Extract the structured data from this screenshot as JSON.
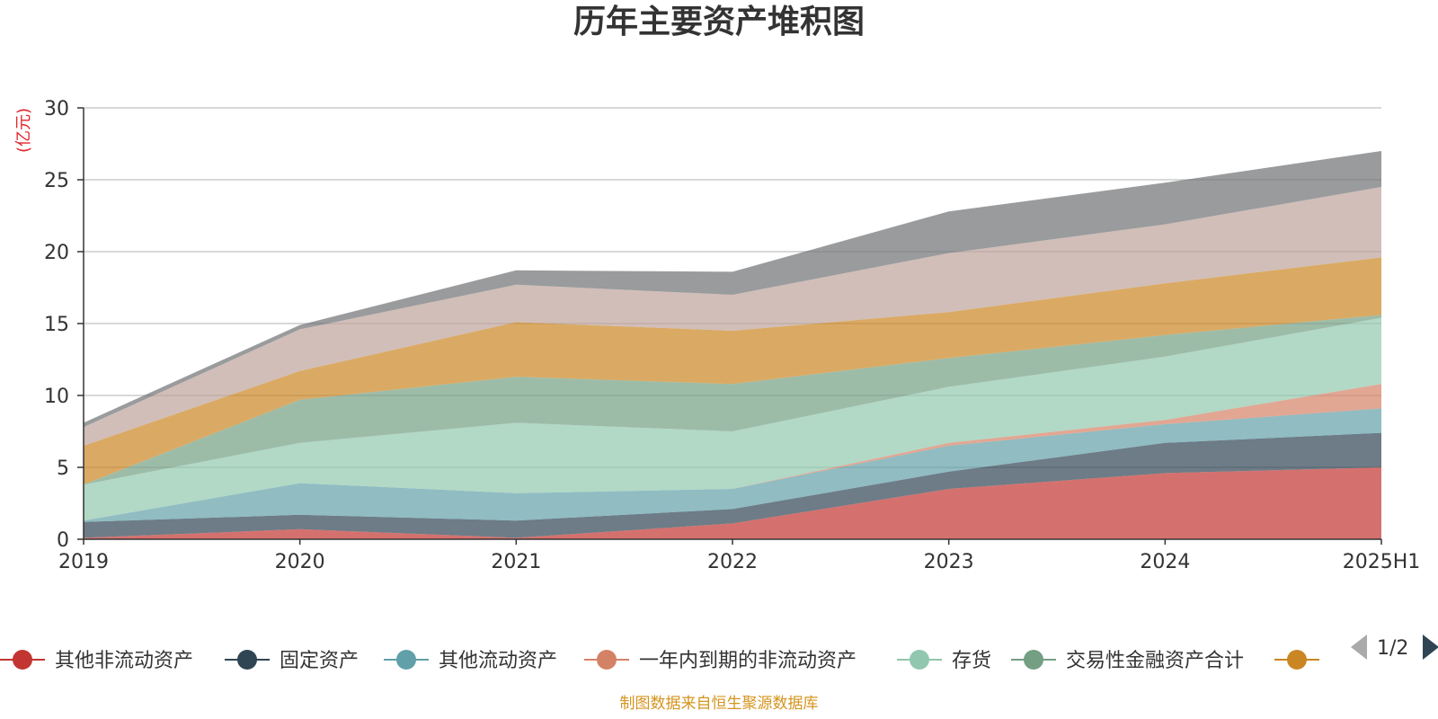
{
  "chart_data": {
    "type": "area",
    "stacked": true,
    "title": "历年主要资产堆积图",
    "ylabel": "(亿元)",
    "ylim": [
      0,
      30
    ],
    "yticks": [
      0,
      5,
      10,
      15,
      20,
      25,
      30
    ],
    "grid": true,
    "categories": [
      "2019",
      "2020",
      "2021",
      "2022",
      "2023",
      "2024",
      "2025H1"
    ],
    "series": [
      {
        "name": "其他非流动资产",
        "color": "#c23531",
        "values": [
          0.1,
          0.7,
          0.1,
          1.1,
          3.5,
          4.6,
          5.0
        ]
      },
      {
        "name": "固定资产",
        "color": "#2f4554",
        "values": [
          1.1,
          1.0,
          1.2,
          1.0,
          1.2,
          2.1,
          2.4
        ]
      },
      {
        "name": "其他流动资产",
        "color": "#61a0a8",
        "values": [
          0.1,
          2.2,
          1.9,
          1.4,
          1.8,
          1.3,
          1.7
        ]
      },
      {
        "name": "一年内到期的非流动资产",
        "color": "#d48265",
        "values": [
          0.0,
          0.0,
          0.0,
          0.0,
          0.2,
          0.3,
          1.7
        ]
      },
      {
        "name": "存货",
        "color": "#91c7ae",
        "values": [
          2.5,
          2.8,
          4.9,
          4.0,
          3.9,
          4.4,
          4.6
        ]
      },
      {
        "name": "交易性金融资产合计",
        "color": "#749f83",
        "values": [
          0.0,
          3.0,
          3.2,
          3.3,
          2.0,
          1.5,
          0.2
        ]
      },
      {
        "name": "",
        "color": "#ca8622",
        "values": [
          2.7,
          2.0,
          3.8,
          3.7,
          3.2,
          3.6,
          4.0
        ]
      },
      {
        "name": "",
        "color": "#bda29a",
        "values": [
          1.3,
          2.9,
          2.6,
          2.5,
          4.1,
          4.1,
          4.9
        ]
      },
      {
        "name": "",
        "color": "#6e7074",
        "values": [
          0.3,
          0.3,
          1.0,
          1.6,
          2.9,
          2.9,
          2.5
        ]
      }
    ],
    "legend_position": "bottom",
    "legend_page": "1/2",
    "source_note": "制图数据来自恒生聚源数据库"
  }
}
